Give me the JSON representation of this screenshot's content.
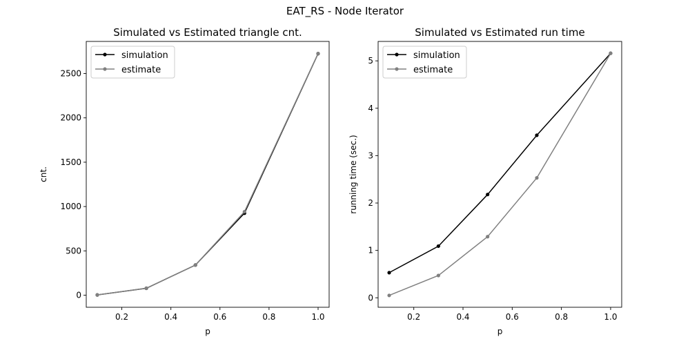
{
  "figure": {
    "suptitle": "EAT_RS - Node Iterator"
  },
  "chart_data": [
    {
      "type": "line",
      "title": "Simulated vs Estimated triangle cnt.",
      "xlabel": "p",
      "ylabel": "cnt.",
      "xlim": [
        0.055,
        1.045
      ],
      "ylim": [
        -136,
        2862
      ],
      "xticks": [
        0.2,
        0.4,
        0.6,
        0.8,
        1.0
      ],
      "xtick_labels": [
        "0.2",
        "0.4",
        "0.6",
        "0.8",
        "1.0"
      ],
      "yticks": [
        0,
        500,
        1000,
        1500,
        2000,
        2500
      ],
      "ytick_labels": [
        "0",
        "500",
        "1000",
        "1500",
        "2000",
        "2500"
      ],
      "grid": false,
      "legend": "upper left",
      "x": [
        0.1,
        0.3,
        0.5,
        0.7,
        1.0
      ],
      "series": [
        {
          "name": "simulation",
          "color": "#000000",
          "values": [
            3,
            78,
            340,
            925,
            2724
          ]
        },
        {
          "name": "estimate",
          "color": "#808080",
          "values": [
            3,
            79,
            340,
            942,
            2726
          ]
        }
      ]
    },
    {
      "type": "line",
      "title": "Simulated vs Estimated run time",
      "xlabel": "p",
      "ylabel": "running time (sec.)",
      "xlim": [
        0.055,
        1.045
      ],
      "ylim": [
        -0.2,
        5.41
      ],
      "xticks": [
        0.2,
        0.4,
        0.6,
        0.8,
        1.0
      ],
      "xtick_labels": [
        "0.2",
        "0.4",
        "0.6",
        "0.8",
        "1.0"
      ],
      "yticks": [
        0,
        1,
        2,
        3,
        4,
        5
      ],
      "ytick_labels": [
        "0",
        "1",
        "2",
        "3",
        "4",
        "5"
      ],
      "grid": false,
      "legend": "upper left",
      "x": [
        0.1,
        0.3,
        0.5,
        0.7,
        1.0
      ],
      "series": [
        {
          "name": "simulation",
          "color": "#000000",
          "values": [
            0.53,
            1.09,
            2.18,
            3.43,
            5.16
          ]
        },
        {
          "name": "estimate",
          "color": "#808080",
          "values": [
            0.05,
            0.47,
            1.29,
            2.53,
            5.16
          ]
        }
      ]
    }
  ]
}
